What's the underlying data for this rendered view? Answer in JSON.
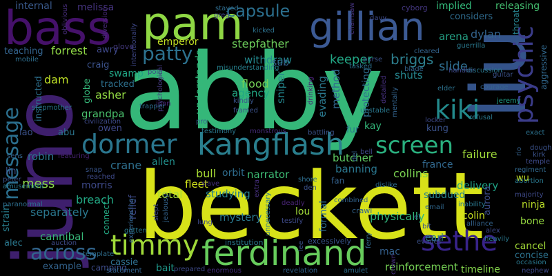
{
  "background": "#000000",
  "words": [
    {
      "text": "abby",
      "color": "#35b779"
    },
    {
      "text": "juno",
      "color": "#3e1f6d"
    },
    {
      "text": "beckett",
      "color": "#d8e219"
    },
    {
      "text": "bass",
      "color": "#45116a"
    },
    {
      "text": "pam",
      "color": "#8fd744"
    },
    {
      "text": "gillian",
      "color": "#3c5a94"
    },
    {
      "text": "liu",
      "color": "#34538a"
    },
    {
      "text": "ferdinand",
      "color": "#67cc5c"
    },
    {
      "text": "timmy",
      "color": "#a0da39"
    },
    {
      "text": "sethe",
      "color": "#38238a"
    },
    {
      "text": "psychic",
      "color": "#3b3c8a"
    },
    {
      "text": "dormer",
      "color": "#2a768e"
    },
    {
      "text": "kangflash",
      "color": "#2a7f8e"
    },
    {
      "text": "screen",
      "color": "#2ab07f"
    },
    {
      "text": "kiki",
      "color": "#238b8d"
    },
    {
      "text": "patty",
      "color": "#2c718e"
    },
    {
      "text": "capsule",
      "color": "#2b6f8e"
    },
    {
      "text": "message",
      "color": "#2b6f8e"
    },
    {
      "text": "across",
      "color": "#31658d"
    },
    {
      "text": "stepfather",
      "color": "#6dcc5b"
    },
    {
      "text": "withdraw",
      "color": "#23898e"
    },
    {
      "text": "keeper",
      "color": "#22a785"
    },
    {
      "text": "briggs",
      "color": "#2d7f8e"
    },
    {
      "text": "arena",
      "color": "#25a185"
    },
    {
      "text": "dylan",
      "color": "#33638d"
    },
    {
      "text": "forrest",
      "color": "#8ed645"
    },
    {
      "text": "emperor",
      "color": "#c2df23"
    },
    {
      "text": "internal",
      "color": "#3a5a8c"
    },
    {
      "text": "melissa",
      "color": "#463480"
    },
    {
      "text": "teaching",
      "color": "#33638d"
    },
    {
      "text": "implied",
      "color": "#33b87a"
    },
    {
      "text": "releasing",
      "color": "#44bf70"
    },
    {
      "text": "considers",
      "color": "#2f6b8e"
    },
    {
      "text": "cyborg",
      "color": "#453781"
    },
    {
      "text": "slide",
      "color": "#2f6d8e"
    },
    {
      "text": "shuts",
      "color": "#25858e"
    },
    {
      "text": "sub",
      "color": "#34618d"
    },
    {
      "text": "agency",
      "color": "#22a884"
    },
    {
      "text": "flood",
      "color": "#73d056"
    },
    {
      "text": "evading",
      "color": "#2a788e"
    },
    {
      "text": "method",
      "color": "#31678e"
    },
    {
      "text": "protecting",
      "color": "#2e6e8e"
    },
    {
      "text": "sniper",
      "color": "#24878e"
    },
    {
      "text": "understands",
      "color": "#33b87a"
    },
    {
      "text": "tracked",
      "color": "#2d708e"
    },
    {
      "text": "swamp",
      "color": "#21a585"
    },
    {
      "text": "asher",
      "color": "#90d743"
    },
    {
      "text": "craig",
      "color": "#3b528b"
    },
    {
      "text": "dam",
      "color": "#bddf26"
    },
    {
      "text": "grandpa",
      "color": "#4ac16d"
    },
    {
      "text": "owen",
      "color": "#3f4889"
    },
    {
      "text": "abu",
      "color": "#2b758e"
    },
    {
      "text": "crane",
      "color": "#2e6f8e"
    },
    {
      "text": "allen",
      "color": "#21908d"
    },
    {
      "text": "robin",
      "color": "#2a788e"
    },
    {
      "text": "mess",
      "color": "#87d549"
    },
    {
      "text": "morris",
      "color": "#3e4a89"
    },
    {
      "text": "breach",
      "color": "#22a884"
    },
    {
      "text": "separately",
      "color": "#2a778e"
    },
    {
      "text": "total",
      "color": "#a5db36"
    },
    {
      "text": "fleet",
      "color": "#d0e11c"
    },
    {
      "text": "bull",
      "color": "#a8db34"
    },
    {
      "text": "orbit",
      "color": "#2f6c8e"
    },
    {
      "text": "narrator",
      "color": "#3dbc74"
    },
    {
      "text": "studying",
      "color": "#26818e"
    },
    {
      "text": "mystery",
      "color": "#2a788e"
    },
    {
      "text": "lou",
      "color": "#a0da39"
    },
    {
      "text": "formal",
      "color": "#2e6d8e"
    },
    {
      "text": "butcher",
      "color": "#5ec962"
    },
    {
      "text": "banning",
      "color": "#2a768e"
    },
    {
      "text": "collins",
      "color": "#7ad151"
    },
    {
      "text": "france",
      "color": "#31688e"
    },
    {
      "text": "failure",
      "color": "#9fda3a"
    },
    {
      "text": "delivery",
      "color": "#20a386"
    },
    {
      "text": "subdued",
      "color": "#26828e"
    },
    {
      "text": "physically",
      "color": "#31b57b"
    },
    {
      "text": "colin",
      "color": "#c8e020"
    },
    {
      "text": "ninja",
      "color": "#bade28"
    },
    {
      "text": "bone",
      "color": "#95d840"
    },
    {
      "text": "cancel",
      "color": "#a2da37"
    },
    {
      "text": "concise",
      "color": "#2c728e"
    },
    {
      "text": "timeline",
      "color": "#84d44b"
    },
    {
      "text": "reinforcement",
      "color": "#75d054"
    },
    {
      "text": "mac",
      "color": "#34608d"
    },
    {
      "text": "earl",
      "color": "#2a788e"
    },
    {
      "text": "cannibal",
      "color": "#37b878"
    },
    {
      "text": "alec",
      "color": "#2a788e"
    },
    {
      "text": "example",
      "color": "#33638d"
    },
    {
      "text": "camping",
      "color": "#3e4c8a"
    },
    {
      "text": "bait",
      "color": "#1f988b"
    },
    {
      "text": "cassie",
      "color": "#2e6e8e"
    },
    {
      "text": "strain",
      "color": "#287d8e"
    },
    {
      "text": "connect",
      "color": "#23a983"
    },
    {
      "text": "relief",
      "color": "#3e4a89"
    },
    {
      "text": "lin",
      "color": "#3b528b"
    },
    {
      "text": "lao",
      "color": "#3b528b"
    },
    {
      "text": "instructed",
      "color": "#2d708e"
    },
    {
      "text": "kay",
      "color": "#33b87a"
    },
    {
      "text": "fur",
      "color": "#2a788e"
    },
    {
      "text": "kung",
      "color": "#3b528b"
    },
    {
      "text": "wu",
      "color": "#c2df23"
    },
    {
      "text": "globe",
      "color": "#35b779"
    },
    {
      "text": "institution",
      "color": "#2a788e"
    },
    {
      "text": "excessively",
      "color": "#39558c"
    },
    {
      "text": "crawl",
      "color": "#33638d"
    },
    {
      "text": "fan",
      "color": "#34618d"
    },
    {
      "text": "aurora",
      "color": "#3d4d8a"
    },
    {
      "text": "awry",
      "color": "#3e4989"
    },
    {
      "text": "glove",
      "color": "#44397e"
    },
    {
      "text": "stayed",
      "color": "#2f6c8e"
    },
    {
      "text": "greg",
      "color": "#3f4788"
    },
    {
      "text": "kicked",
      "color": "#2d718e"
    },
    {
      "text": "misunderstanding",
      "color": "#26818e"
    },
    {
      "text": "diversion",
      "color": "#482979"
    },
    {
      "text": "intentionally",
      "color": "#3f4889"
    },
    {
      "text": "oblivious",
      "color": "#472d7b"
    },
    {
      "text": "chainsaw",
      "color": "#46337f"
    },
    {
      "text": "throat",
      "color": "#26828e"
    },
    {
      "text": "davy",
      "color": "#3e4a89"
    },
    {
      "text": "purse",
      "color": "#3b528b"
    },
    {
      "text": "tasked",
      "color": "#2d708e"
    },
    {
      "text": "cleared",
      "color": "#33638d"
    },
    {
      "text": "guerrilla",
      "color": "#2a788e"
    },
    {
      "text": "aggressive",
      "color": "#31688e"
    },
    {
      "text": "mobile",
      "color": "#2e6e8e"
    },
    {
      "text": "pole",
      "color": "#3e4a89"
    },
    {
      "text": "juan",
      "color": "#482475"
    },
    {
      "text": "psychological",
      "color": "#44397e"
    },
    {
      "text": "blade",
      "color": "#33638d"
    },
    {
      "text": "guitar",
      "color": "#3b528b"
    },
    {
      "text": "discussion",
      "color": "#2a788e"
    },
    {
      "text": "handler",
      "color": "#3e4989"
    },
    {
      "text": "elder",
      "color": "#2c728e"
    },
    {
      "text": "courage",
      "color": "#34618d"
    },
    {
      "text": "jeremy",
      "color": "#1fa088"
    },
    {
      "text": "stepmother",
      "color": "#2a788e"
    },
    {
      "text": "trapper",
      "color": "#2e6e8e"
    },
    {
      "text": "kindly",
      "color": "#39558c"
    },
    {
      "text": "framed",
      "color": "#3b528b"
    },
    {
      "text": "drinking",
      "color": "#482374"
    },
    {
      "text": "detailed",
      "color": "#46307e"
    },
    {
      "text": "unstable",
      "color": "#2a788e"
    },
    {
      "text": "mentally",
      "color": "#33638d"
    },
    {
      "text": "locker",
      "color": "#3e4a89"
    },
    {
      "text": "refusal",
      "color": "#2a788e"
    },
    {
      "text": "exact",
      "color": "#2c728e"
    },
    {
      "text": "dough",
      "color": "#3b528b"
    },
    {
      "text": "kirk",
      "color": "#3b528b"
    },
    {
      "text": "temple",
      "color": "#3e4a89"
    },
    {
      "text": "civilization",
      "color": "#3e4a89"
    },
    {
      "text": "pro",
      "color": "#33638d"
    },
    {
      "text": "testimony",
      "color": "#2a788e"
    },
    {
      "text": "monstrous",
      "color": "#472d7b"
    },
    {
      "text": "battling",
      "color": "#3b528b"
    },
    {
      "text": "del",
      "color": "#34618d"
    },
    {
      "text": "bell",
      "color": "#3e4a89"
    },
    {
      "text": "dislike",
      "color": "#2e6e8e"
    },
    {
      "text": "regiment",
      "color": "#31688e"
    },
    {
      "text": "abortion",
      "color": "#2a788e"
    },
    {
      "text": "majority",
      "color": "#3e4a89"
    },
    {
      "text": "rio",
      "color": "#34618d"
    },
    {
      "text": "sens",
      "color": "#33638d"
    },
    {
      "text": "featuring",
      "color": "#482374"
    },
    {
      "text": "snap",
      "color": "#39558c"
    },
    {
      "text": "reached",
      "color": "#3e4a89"
    },
    {
      "text": "jealousy",
      "color": "#33638d"
    },
    {
      "text": "slave",
      "color": "#46307e"
    },
    {
      "text": "peter",
      "color": "#39558c"
    },
    {
      "text": "amusement",
      "color": "#2a788e"
    },
    {
      "text": "paranormal",
      "color": "#2e6e8e"
    },
    {
      "text": "experiencing",
      "color": "#33638d"
    },
    {
      "text": "slept",
      "color": "#3e4a89"
    },
    {
      "text": "gotten",
      "color": "#2a788e"
    },
    {
      "text": "shore",
      "color": "#2e6e8e"
    },
    {
      "text": "den",
      "color": "#3b528b"
    },
    {
      "text": "extra",
      "color": "#46307e"
    },
    {
      "text": "unnecessary",
      "color": "#2a788e"
    },
    {
      "text": "deadly",
      "color": "#482475"
    },
    {
      "text": "combined",
      "color": "#33638d"
    },
    {
      "text": "testify",
      "color": "#3e4a89"
    },
    {
      "text": "email",
      "color": "#31688e"
    },
    {
      "text": "inability",
      "color": "#2a788e"
    },
    {
      "text": "alliance",
      "color": "#33638d"
    },
    {
      "text": "bit",
      "color": "#3b528b"
    },
    {
      "text": "alex",
      "color": "#3e4a89"
    },
    {
      "text": "heavily",
      "color": "#2a788e"
    },
    {
      "text": "el",
      "color": "#34618d"
    },
    {
      "text": "auction",
      "color": "#3e4a89"
    },
    {
      "text": "template",
      "color": "#2e6e8e"
    },
    {
      "text": "statement",
      "color": "#33638d"
    },
    {
      "text": "prepared",
      "color": "#3e4a89"
    },
    {
      "text": "enormous",
      "color": "#46307e"
    },
    {
      "text": "lee",
      "color": "#3b528b"
    },
    {
      "text": "ferry",
      "color": "#31688e"
    },
    {
      "text": "amulet",
      "color": "#2e6e8e"
    },
    {
      "text": "evades",
      "color": "#3b528b"
    },
    {
      "text": "crown",
      "color": "#46307e"
    },
    {
      "text": "occasion",
      "color": "#2a788e"
    },
    {
      "text": "nephew",
      "color": "#3e4a89"
    },
    {
      "text": "revelation",
      "color": "#33638d"
    },
    {
      "text": "lung",
      "color": "#3e4a89"
    }
  ]
}
